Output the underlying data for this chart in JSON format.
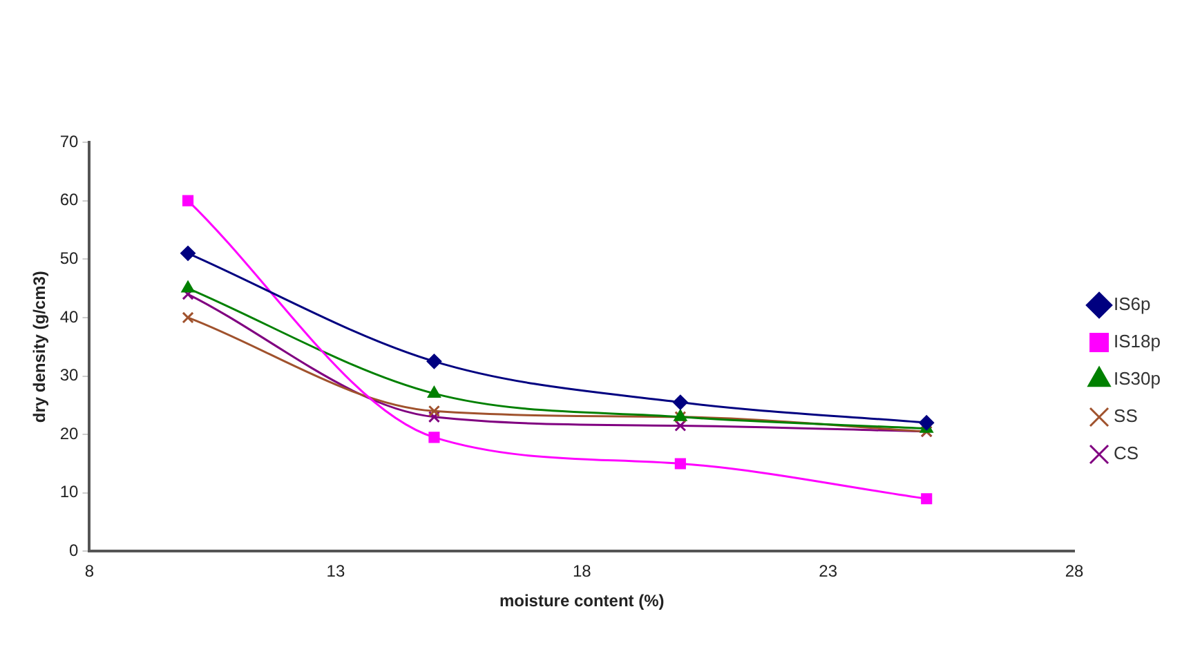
{
  "chart_data": {
    "type": "line",
    "xlabel": "moisture content (%)",
    "ylabel": "dry density (g/cm3)",
    "x": [
      10,
      15,
      20,
      25
    ],
    "xlim": [
      8,
      28
    ],
    "xticks": [
      8,
      13,
      18,
      23,
      28
    ],
    "ylim": [
      0,
      70
    ],
    "yticks": [
      0,
      10,
      20,
      30,
      40,
      50,
      60,
      70
    ],
    "grid": false,
    "legend": "right",
    "line_style": "solid",
    "series": [
      {
        "name": "IS6p",
        "color": "#000080",
        "marker": "diamond",
        "values": [
          51,
          32.5,
          25.5,
          22
        ]
      },
      {
        "name": "IS18p",
        "color": "#ff00ff",
        "marker": "square",
        "values": [
          60,
          19.5,
          15,
          9
        ]
      },
      {
        "name": "IS30p",
        "color": "#008000",
        "marker": "triangle",
        "values": [
          45,
          27,
          23,
          21
        ]
      },
      {
        "name": "SS",
        "color": "#a0522d",
        "marker": "cross",
        "values": [
          40,
          24,
          23,
          20.5
        ]
      },
      {
        "name": "CS",
        "color": "#800080",
        "marker": "cross",
        "values": [
          44,
          23,
          21.5,
          20.5
        ]
      }
    ]
  }
}
